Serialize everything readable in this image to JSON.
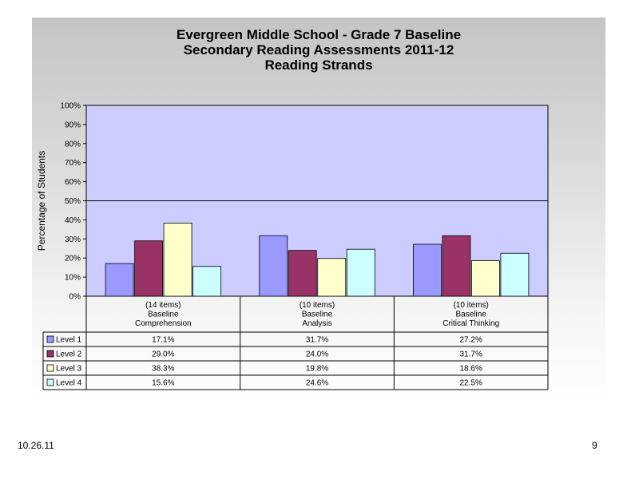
{
  "chart_data": {
    "type": "bar",
    "title": [
      "Evergreen Middle School - Grade 7 Baseline",
      "Secondary Reading Assessments 2011-12",
      "Reading Strands"
    ],
    "ylabel": "Percentage of Students",
    "ylim": [
      0,
      100
    ],
    "yticks": [
      "0%",
      "10%",
      "20%",
      "30%",
      "40%",
      "50%",
      "60%",
      "70%",
      "80%",
      "90%",
      "100%"
    ],
    "categories": [
      [
        "(14 items)",
        "Baseline",
        "Comprehension"
      ],
      [
        "(10 items)",
        "Baseline",
        "Analysis"
      ],
      [
        "(10 items)",
        "Baseline",
        "Critical Thinking"
      ]
    ],
    "reference_line": 50,
    "grid": false,
    "legend": "data-table",
    "series": [
      {
        "name": "Level 1",
        "color": "#9999ff",
        "values": [
          17.1,
          31.7,
          27.2
        ],
        "labels": [
          "17.1%",
          "31.7%",
          "27.2%"
        ]
      },
      {
        "name": "Level 2",
        "color": "#993366",
        "values": [
          29.0,
          24.0,
          31.7
        ],
        "labels": [
          "29.0%",
          "24.0%",
          "31.7%"
        ]
      },
      {
        "name": "Level 3",
        "color": "#ffffcc",
        "values": [
          38.3,
          19.8,
          18.6
        ],
        "labels": [
          "38.3%",
          "19.8%",
          "18.6%"
        ]
      },
      {
        "name": "Level 4",
        "color": "#ccffff",
        "values": [
          15.6,
          24.6,
          22.5
        ],
        "labels": [
          "15.6%",
          "24.6%",
          "22.5%"
        ]
      }
    ]
  },
  "footer": {
    "date": "10.26.11",
    "page": "9"
  },
  "colors": {
    "plot_area": "#ccccff"
  }
}
